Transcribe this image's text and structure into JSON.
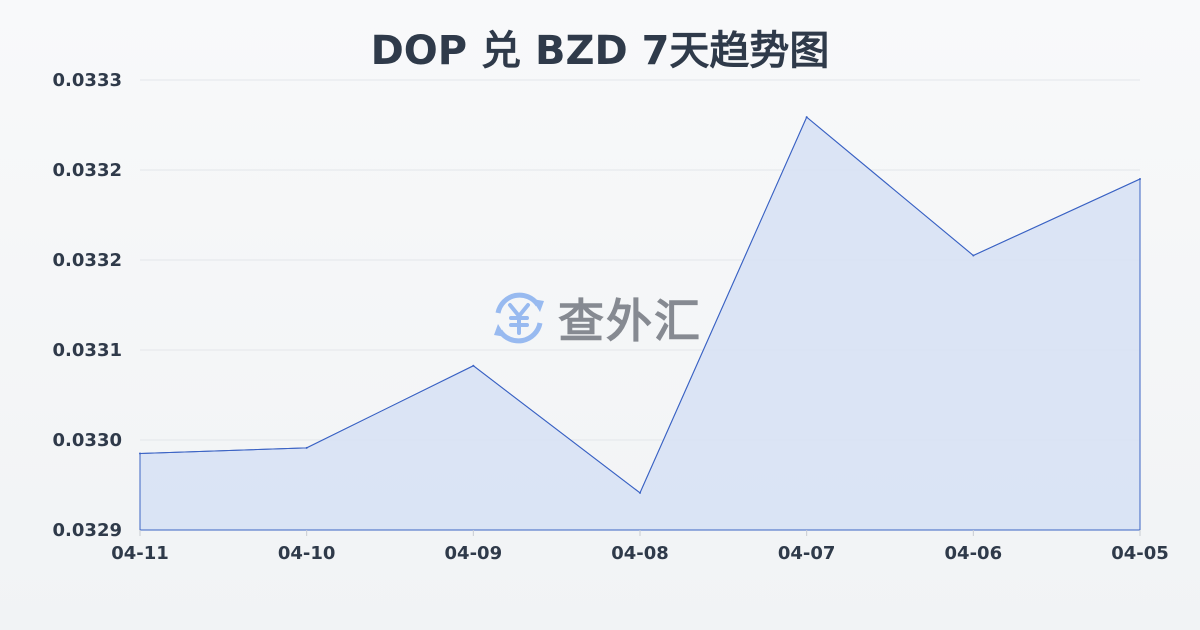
{
  "chart_data": {
    "type": "area",
    "title": "DOP 兑 BZD 7天趋势图",
    "categories": [
      "04-11",
      "04-10",
      "04-09",
      "04-08",
      "04-07",
      "04-06",
      "04-05"
    ],
    "values": [
      0.032988,
      0.032993,
      0.033066,
      0.032953,
      0.033287,
      0.033164,
      0.033232
    ],
    "ylim": [
      0.03292,
      0.03332
    ],
    "yticks": [
      0.03292,
      0.033,
      0.03308,
      0.03316,
      0.03324,
      0.03332
    ],
    "ytick_labels": [
      "0.0329",
      "0.0330",
      "0.0331",
      "0.0332",
      "0.0332",
      "0.0333"
    ],
    "grid": true,
    "line_color": "#3b63c4",
    "fill_color": "#d6e0f5"
  },
  "watermark": {
    "text": "查外汇",
    "icon": "yen-exchange-icon",
    "icon_color": "#8fb4f0"
  }
}
